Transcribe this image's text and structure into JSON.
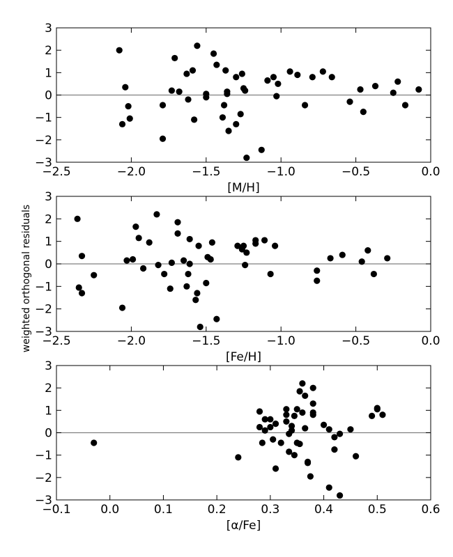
{
  "ylabel": "weighted orthogonal residuals",
  "chart_data": [
    {
      "type": "scatter",
      "xlabel": "[M/H]",
      "xlim": [
        -2.5,
        0.0
      ],
      "ylim": [
        -3,
        3
      ],
      "xticks": [
        -2.5,
        -2.0,
        -1.5,
        -1.0,
        -0.5,
        0.0
      ],
      "xtick_labels": [
        "−2.5",
        "−2.0",
        "−1.5",
        "−1.0",
        "−0.5",
        "0.0"
      ],
      "yticks": [
        -3,
        -2,
        -1,
        0,
        1,
        2,
        3
      ],
      "ytick_labels": [
        "−3",
        "−2",
        "−1",
        "0",
        "1",
        "2",
        "3"
      ],
      "reference_line_y": 0,
      "points": [
        [
          -2.08,
          2.0
        ],
        [
          -2.06,
          -1.3
        ],
        [
          -2.04,
          0.35
        ],
        [
          -2.02,
          -0.5
        ],
        [
          -2.01,
          -1.05
        ],
        [
          -1.79,
          -0.45
        ],
        [
          -1.79,
          -1.95
        ],
        [
          -1.73,
          0.2
        ],
        [
          -1.71,
          1.65
        ],
        [
          -1.68,
          0.15
        ],
        [
          -1.63,
          0.95
        ],
        [
          -1.62,
          -0.2
        ],
        [
          -1.59,
          1.1
        ],
        [
          -1.58,
          -1.1
        ],
        [
          -1.56,
          2.2
        ],
        [
          -1.5,
          -0.1
        ],
        [
          -1.5,
          0.05
        ],
        [
          -1.45,
          1.85
        ],
        [
          -1.43,
          1.35
        ],
        [
          -1.39,
          -1.0
        ],
        [
          -1.38,
          -0.45
        ],
        [
          -1.37,
          1.1
        ],
        [
          -1.36,
          0.05
        ],
        [
          -1.36,
          0.15
        ],
        [
          -1.35,
          -1.6
        ],
        [
          -1.3,
          0.8
        ],
        [
          -1.3,
          -1.3
        ],
        [
          -1.27,
          -0.85
        ],
        [
          -1.26,
          0.95
        ],
        [
          -1.25,
          0.3
        ],
        [
          -1.24,
          0.2
        ],
        [
          -1.23,
          -2.8
        ],
        [
          -1.13,
          -2.45
        ],
        [
          -1.09,
          0.65
        ],
        [
          -1.05,
          0.8
        ],
        [
          -1.03,
          -0.05
        ],
        [
          -1.02,
          0.5
        ],
        [
          -0.94,
          1.05
        ],
        [
          -0.89,
          0.9
        ],
        [
          -0.84,
          -0.45
        ],
        [
          -0.79,
          0.8
        ],
        [
          -0.72,
          1.05
        ],
        [
          -0.66,
          0.8
        ],
        [
          -0.54,
          -0.3
        ],
        [
          -0.47,
          0.25
        ],
        [
          -0.45,
          -0.75
        ],
        [
          -0.37,
          0.4
        ],
        [
          -0.25,
          0.1
        ],
        [
          -0.22,
          0.6
        ],
        [
          -0.17,
          -0.45
        ],
        [
          -0.08,
          0.25
        ]
      ]
    },
    {
      "type": "scatter",
      "xlabel": "[Fe/H]",
      "xlim": [
        -2.5,
        0.0
      ],
      "ylim": [
        -3,
        3
      ],
      "xticks": [
        -2.5,
        -2.0,
        -1.5,
        -1.0,
        -0.5,
        0.0
      ],
      "xtick_labels": [
        "−2.5",
        "−2.0",
        "−1.5",
        "−1.0",
        "−0.5",
        "0.0"
      ],
      "yticks": [
        -3,
        -2,
        -1,
        0,
        1,
        2,
        3
      ],
      "ytick_labels": [
        "−3",
        "−2",
        "−1",
        "0",
        "1",
        "2",
        "3"
      ],
      "reference_line_y": 0,
      "points": [
        [
          -2.36,
          2.0
        ],
        [
          -2.35,
          -1.05
        ],
        [
          -2.33,
          0.35
        ],
        [
          -2.33,
          -1.3
        ],
        [
          -2.25,
          -0.5
        ],
        [
          -2.06,
          -1.95
        ],
        [
          -2.03,
          0.15
        ],
        [
          -1.99,
          0.2
        ],
        [
          -1.97,
          1.65
        ],
        [
          -1.95,
          1.15
        ],
        [
          -1.92,
          -0.2
        ],
        [
          -1.88,
          0.95
        ],
        [
          -1.83,
          2.2
        ],
        [
          -1.82,
          -0.05
        ],
        [
          -1.78,
          -0.45
        ],
        [
          -1.74,
          -1.1
        ],
        [
          -1.73,
          0.05
        ],
        [
          -1.69,
          1.85
        ],
        [
          -1.69,
          1.35
        ],
        [
          -1.65,
          0.15
        ],
        [
          -1.63,
          -1.0
        ],
        [
          -1.62,
          -0.45
        ],
        [
          -1.61,
          0.0
        ],
        [
          -1.61,
          1.1
        ],
        [
          -1.57,
          -1.6
        ],
        [
          -1.56,
          -1.3
        ],
        [
          -1.55,
          0.8
        ],
        [
          -1.54,
          -2.8
        ],
        [
          -1.5,
          -0.85
        ],
        [
          -1.49,
          0.3
        ],
        [
          -1.47,
          0.2
        ],
        [
          -1.46,
          0.95
        ],
        [
          -1.43,
          -2.45
        ],
        [
          -1.29,
          0.8
        ],
        [
          -1.26,
          0.65
        ],
        [
          -1.25,
          0.8
        ],
        [
          -1.24,
          -0.05
        ],
        [
          -1.23,
          0.5
        ],
        [
          -1.17,
          0.9
        ],
        [
          -1.17,
          1.05
        ],
        [
          -1.11,
          1.05
        ],
        [
          -1.07,
          -0.45
        ],
        [
          -1.04,
          0.8
        ],
        [
          -0.76,
          -0.3
        ],
        [
          -0.76,
          -0.75
        ],
        [
          -0.67,
          0.25
        ],
        [
          -0.59,
          0.4
        ],
        [
          -0.46,
          0.1
        ],
        [
          -0.42,
          0.6
        ],
        [
          -0.38,
          -0.45
        ],
        [
          -0.29,
          0.25
        ]
      ]
    },
    {
      "type": "scatter",
      "xlabel": "[α/Fe]",
      "xlim": [
        -0.1,
        0.6
      ],
      "ylim": [
        -3,
        3
      ],
      "xticks": [
        -0.1,
        0.0,
        0.1,
        0.2,
        0.3,
        0.4,
        0.5,
        0.6
      ],
      "xtick_labels": [
        "−0.1",
        "0.0",
        "0.1",
        "0.2",
        "0.3",
        "0.4",
        "0.5",
        "0.6"
      ],
      "yticks": [
        -3,
        -2,
        -1,
        0,
        1,
        2,
        3
      ],
      "ytick_labels": [
        "−3",
        "−2",
        "−1",
        "0",
        "1",
        "2",
        "3"
      ],
      "reference_line_y": 0,
      "points": [
        [
          -0.03,
          -0.45
        ],
        [
          0.24,
          -1.1
        ],
        [
          0.28,
          0.95
        ],
        [
          0.28,
          0.25
        ],
        [
          0.285,
          -0.45
        ],
        [
          0.29,
          0.6
        ],
        [
          0.29,
          0.1
        ],
        [
          0.3,
          0.6
        ],
        [
          0.3,
          0.25
        ],
        [
          0.305,
          -0.3
        ],
        [
          0.31,
          0.4
        ],
        [
          0.31,
          -1.6
        ],
        [
          0.32,
          -0.45
        ],
        [
          0.33,
          0.5
        ],
        [
          0.33,
          0.8
        ],
        [
          0.33,
          1.05
        ],
        [
          0.335,
          -0.05
        ],
        [
          0.335,
          -0.85
        ],
        [
          0.34,
          0.1
        ],
        [
          0.34,
          0.3
        ],
        [
          0.345,
          0.75
        ],
        [
          0.345,
          -1.0
        ],
        [
          0.35,
          1.05
        ],
        [
          0.35,
          -0.45
        ],
        [
          0.355,
          1.85
        ],
        [
          0.355,
          -0.5
        ],
        [
          0.36,
          2.2
        ],
        [
          0.36,
          0.9
        ],
        [
          0.365,
          1.65
        ],
        [
          0.365,
          0.2
        ],
        [
          0.37,
          -1.3
        ],
        [
          0.37,
          -1.35
        ],
        [
          0.375,
          -1.95
        ],
        [
          0.38,
          2.0
        ],
        [
          0.38,
          1.3
        ],
        [
          0.38,
          0.9
        ],
        [
          0.38,
          0.8
        ],
        [
          0.4,
          0.35
        ],
        [
          0.41,
          -2.45
        ],
        [
          0.41,
          0.15
        ],
        [
          0.42,
          -0.2
        ],
        [
          0.42,
          -0.75
        ],
        [
          0.43,
          -2.8
        ],
        [
          0.43,
          -0.05
        ],
        [
          0.45,
          0.15
        ],
        [
          0.46,
          -1.05
        ],
        [
          0.49,
          0.75
        ],
        [
          0.5,
          1.1
        ],
        [
          0.5,
          1.05
        ],
        [
          0.51,
          0.8
        ]
      ]
    }
  ]
}
